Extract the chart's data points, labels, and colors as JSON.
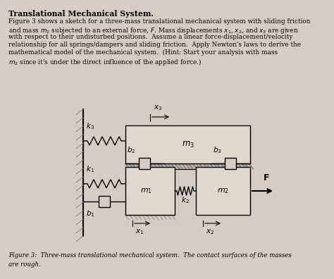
{
  "bg_color": "#d4cdc3",
  "title": "Translational Mechanical System.",
  "body_lines": [
    "Figure 3 shows a sketch for a three-mass translational mechanical system with sliding friction",
    "and mass $m_2$ subjected to an external force, $F$. Mass displacements $x_1$, $x_2$, and $x_3$ are given",
    "with respect to their undisturbed positions.  Assume a linear force-displacement/velocity",
    "relationship for all springs/dampers and sliding friction.  Apply Newton's laws to derive the",
    "mathematical model of the mechanical system.  (Hint: Start your analysis with mass",
    "$m_2$ since it's under the direct influence of the applied force.)"
  ],
  "caption": "Figure 3:  Three-mass translational mechanical system.  The contact surfaces of the masses\nare rough."
}
